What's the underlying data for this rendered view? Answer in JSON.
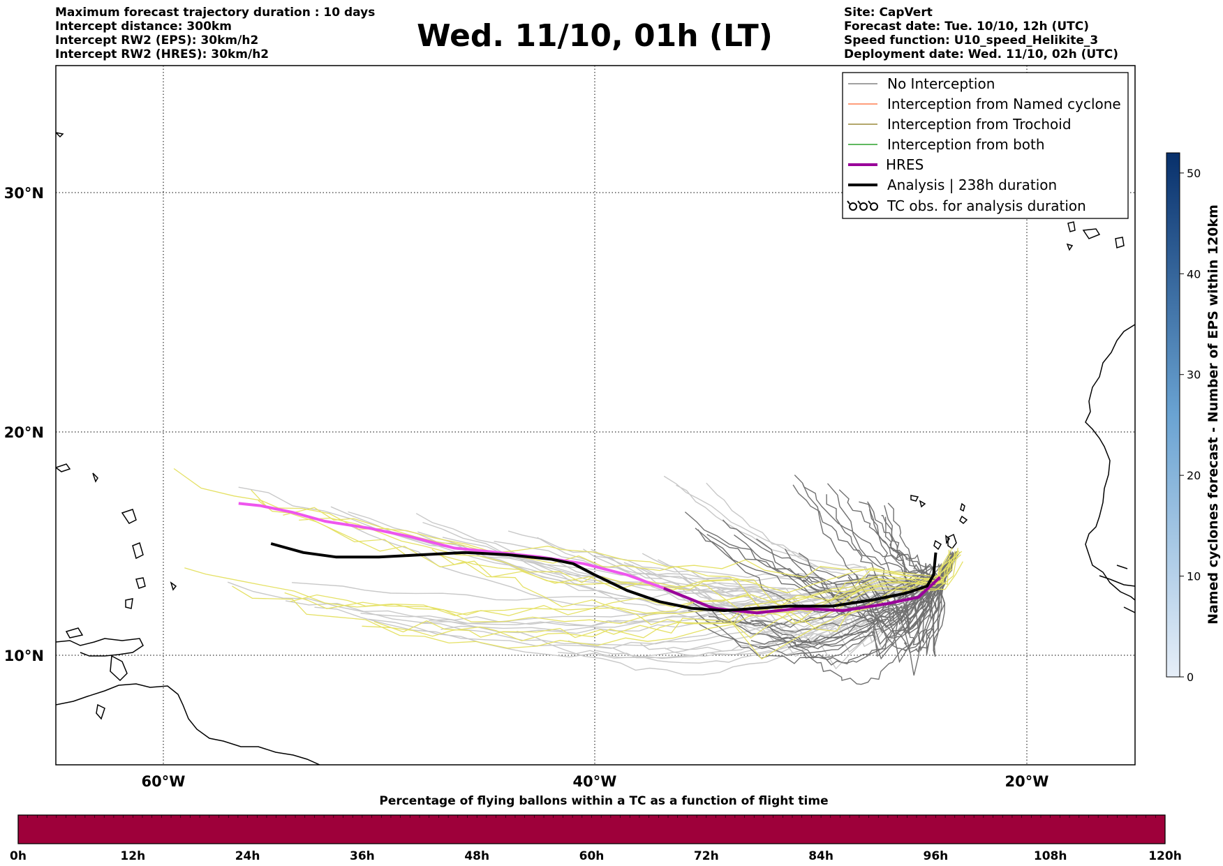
{
  "header": {
    "left_lines": [
      "Maximum forecast trajectory duration : 10 days",
      "Intercept distance: 300km",
      "Intercept RW2 (EPS):  30km/h2",
      "Intercept RW2 (HRES): 30km/h2"
    ],
    "title": "Wed. 11/10, 01h (LT)",
    "right_lines": [
      "Site: CapVert",
      "Forecast date: Tue. 10/10, 12h (UTC)",
      "Speed function: U10_speed_Helikite_3",
      "Deployment date: Wed. 11/10, 02h (UTC)"
    ]
  },
  "map": {
    "lon_ticks": [
      "60°W",
      "40°W",
      "20°W"
    ],
    "lat_ticks": [
      "30°N",
      "20°N",
      "10°N"
    ],
    "extent": {
      "lon": [
        -65,
        -15
      ],
      "lat": [
        5.4,
        34.6
      ]
    },
    "grid": "dotted"
  },
  "legend": {
    "placement": "top-right",
    "items": [
      {
        "label": "No Interception",
        "color": "#808080"
      },
      {
        "label": "Interception from Named cyclone",
        "color": "#ff7f50"
      },
      {
        "label": "Interception from Trochoid",
        "color": "#9a8a3a"
      },
      {
        "label": "Interception from both",
        "color": "#2ca02c"
      },
      {
        "label": "HRES",
        "color": "#990099"
      },
      {
        "label": "Analysis | 238h duration",
        "color": "#000000"
      },
      {
        "label": "TC obs. for analysis duration",
        "icon": "cyclone-symbol-icon"
      }
    ]
  },
  "right_colorbar": {
    "label": "Named cyclones forecast - Number of EPS within 120km",
    "ticks": [
      "0",
      "10",
      "20",
      "30",
      "40",
      "50"
    ],
    "range": [
      0,
      52
    ],
    "colors": [
      "#e6eef8",
      "#08306b"
    ]
  },
  "bottom_colorbar": {
    "title": "Percentage of flying ballons within a TC as a function of flight time",
    "ticks": [
      "0h",
      "12h",
      "24h",
      "36h",
      "48h",
      "60h",
      "72h",
      "84h",
      "96h",
      "108h",
      "120h"
    ],
    "fill_color": "#9e003a"
  },
  "chart_data": {
    "type": "line",
    "series": [
      {
        "name": "HRES",
        "color": "#ee55ee",
        "lon": [
          -56.5,
          -55.5,
          -54,
          -52.5,
          -50.5,
          -48.5,
          -46.5,
          -44.5,
          -42.5,
          -40.5,
          -38.5,
          -36.8,
          -34.5,
          -32.5,
          -30.5,
          -28.5,
          -26.5,
          -25,
          -24
        ],
        "lat": [
          16.8,
          16.7,
          16.4,
          16.0,
          15.7,
          15.3,
          14.8,
          14.6,
          14.4,
          14.1,
          13.6,
          13.0,
          12.1,
          11.9,
          12.1,
          12.0,
          12.3,
          12.6,
          13.5
        ]
      },
      {
        "name": "Analysis | 238h duration",
        "color": "#000000",
        "lon": [
          -55,
          -53.5,
          -52,
          -50,
          -48,
          -46,
          -44,
          -42,
          -41,
          -40,
          -38.5,
          -37,
          -35.5,
          -34,
          -32.5,
          -31,
          -29,
          -27,
          -25.5,
          -24.6,
          -24.3,
          -24.2
        ],
        "lat": [
          15.0,
          14.6,
          14.4,
          14.4,
          14.5,
          14.6,
          14.5,
          14.3,
          14.1,
          13.6,
          12.9,
          12.4,
          12.1,
          12.0,
          12.1,
          12.2,
          12.2,
          12.5,
          12.8,
          13.1,
          13.6,
          14.6
        ]
      }
    ]
  }
}
